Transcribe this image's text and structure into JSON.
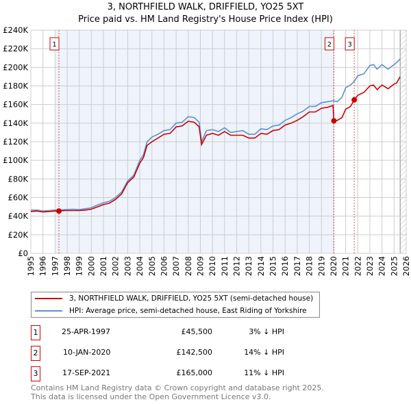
{
  "chart_data": {
    "type": "line",
    "title": "3, NORTHFIELD WALK, DRIFFIELD, YO25 5XT",
    "subtitle": "Price paid vs. HM Land Registry's House Price Index (HPI)",
    "xlim": [
      1995,
      2026
    ],
    "ylim": [
      0,
      240000
    ],
    "yticks": [
      {
        "v": 0,
        "l": "£0"
      },
      {
        "v": 20000,
        "l": "£20K"
      },
      {
        "v": 40000,
        "l": "£40K"
      },
      {
        "v": 60000,
        "l": "£60K"
      },
      {
        "v": 80000,
        "l": "£80K"
      },
      {
        "v": 100000,
        "l": "£100K"
      },
      {
        "v": 120000,
        "l": "£120K"
      },
      {
        "v": 140000,
        "l": "£140K"
      },
      {
        "v": 160000,
        "l": "£160K"
      },
      {
        "v": 180000,
        "l": "£180K"
      },
      {
        "v": 200000,
        "l": "£200K"
      },
      {
        "v": 220000,
        "l": "£220K"
      },
      {
        "v": 240000,
        "l": "£240K"
      }
    ],
    "xticks": [
      "1995",
      "1996",
      "1997",
      "1998",
      "1999",
      "2000",
      "2001",
      "2002",
      "2003",
      "2004",
      "2005",
      "2006",
      "2007",
      "2008",
      "2009",
      "2010",
      "2011",
      "2012",
      "2013",
      "2014",
      "2015",
      "2016",
      "2017",
      "2018",
      "2019",
      "2020",
      "2021",
      "2022",
      "2023",
      "2024",
      "2025",
      "2026"
    ],
    "grid": true,
    "shaded_range": [
      1997.0,
      2020.03
    ],
    "hatched_range": [
      2025.5,
      2026
    ],
    "series": [
      {
        "name": "3, NORTHFIELD WALK, DRIFFIELD, YO25 5XT (semi-detached house)",
        "color": "#cc0000",
        "x": [
          1995,
          1995.5,
          1996,
          1996.5,
          1997,
          1997.32,
          1997.8,
          1998.5,
          1999,
          1999.5,
          2000,
          2000.5,
          2001,
          2001.5,
          2002,
          2002.5,
          2003,
          2003.5,
          2004,
          2004.3,
          2004.6,
          2005,
          2005.5,
          2006,
          2006.5,
          2007,
          2007.5,
          2008,
          2008.5,
          2008.9,
          2009.1,
          2009.5,
          2010,
          2010.5,
          2011,
          2011.5,
          2012,
          2012.5,
          2013,
          2013.5,
          2014,
          2014.5,
          2015,
          2015.5,
          2016,
          2016.5,
          2017,
          2017.5,
          2018,
          2018.5,
          2019,
          2019.5,
          2019.95,
          2020.03,
          2020.3,
          2020.7,
          2021,
          2021.4,
          2021.71,
          2022,
          2022.5,
          2023,
          2023.3,
          2023.6,
          2024,
          2024.5,
          2025,
          2025.2,
          2025.5
        ],
        "y": [
          45000,
          45500,
          44500,
          45000,
          45500,
          45500,
          46000,
          46000,
          46000,
          46500,
          47500,
          50000,
          52500,
          54000,
          58000,
          64000,
          76000,
          82000,
          97000,
          103000,
          116000,
          120000,
          124000,
          128000,
          129000,
          136000,
          137000,
          142000,
          141000,
          136000,
          117000,
          127000,
          129000,
          127000,
          131000,
          127000,
          127000,
          127000,
          124000,
          124000,
          129000,
          128000,
          132000,
          133000,
          138000,
          140000,
          143000,
          147000,
          152000,
          152000,
          156000,
          157000,
          159000,
          142500,
          143000,
          146000,
          155000,
          158000,
          165000,
          170000,
          173000,
          180000,
          181000,
          176000,
          181000,
          177000,
          182000,
          183000,
          190000
        ]
      },
      {
        "name": "HPI: Average price, semi-detached house, East Riding of Yorkshire",
        "color": "#5b8fd4",
        "x": [
          1995,
          1995.5,
          1996,
          1996.5,
          1997,
          1997.32,
          1997.8,
          1998.5,
          1999,
          1999.5,
          2000,
          2000.5,
          2001,
          2001.5,
          2002,
          2002.5,
          2003,
          2003.5,
          2004,
          2004.3,
          2004.6,
          2005,
          2005.5,
          2006,
          2006.5,
          2007,
          2007.5,
          2008,
          2008.5,
          2008.9,
          2009.1,
          2009.5,
          2010,
          2010.5,
          2011,
          2011.5,
          2012,
          2012.5,
          2013,
          2013.5,
          2014,
          2014.5,
          2015,
          2015.5,
          2016,
          2016.5,
          2017,
          2017.5,
          2018,
          2018.5,
          2019,
          2019.5,
          2019.95,
          2020.03,
          2020.3,
          2020.7,
          2021,
          2021.4,
          2021.71,
          2022,
          2022.5,
          2023,
          2023.3,
          2023.6,
          2024,
          2024.5,
          2025,
          2025.2,
          2025.5
        ],
        "y": [
          46500,
          46500,
          45500,
          46000,
          46500,
          46500,
          47000,
          47500,
          47000,
          48000,
          49000,
          52000,
          54500,
          56000,
          60000,
          66000,
          78000,
          84000,
          100000,
          106000,
          120000,
          125000,
          128000,
          132000,
          133000,
          140000,
          141000,
          147000,
          146000,
          141000,
          120000,
          132000,
          133000,
          131000,
          135000,
          130000,
          131000,
          132000,
          128000,
          128000,
          134000,
          133000,
          137000,
          138000,
          143000,
          146000,
          150000,
          153000,
          158000,
          158000,
          162000,
          163000,
          164000,
          164000,
          163000,
          168000,
          178000,
          181000,
          185000,
          191000,
          193000,
          202000,
          203000,
          198000,
          203000,
          198000,
          203000,
          205000,
          209000
        ]
      }
    ],
    "markers": [
      {
        "label": "1",
        "x": 1997.32,
        "y": 45500
      },
      {
        "label": "2",
        "x": 2020.03,
        "y": 142500
      },
      {
        "label": "3",
        "x": 2021.71,
        "y": 165000
      }
    ]
  },
  "legend": {
    "property": "3, NORTHFIELD WALK, DRIFFIELD, YO25 5XT (semi-detached house)",
    "hpi": "HPI: Average price, semi-detached house, East Riding of Yorkshire"
  },
  "transactions": [
    {
      "num": "1",
      "date": "25-APR-1997",
      "price": "£45,500",
      "hpi": "3% ↓ HPI"
    },
    {
      "num": "2",
      "date": "10-JAN-2020",
      "price": "£142,500",
      "hpi": "14% ↓ HPI"
    },
    {
      "num": "3",
      "date": "17-SEP-2021",
      "price": "£165,000",
      "hpi": "11% ↓ HPI"
    }
  ],
  "footer": {
    "line1": "Contains HM Land Registry data © Crown copyright and database right 2025.",
    "line2": "This data is licensed under the Open Government Licence v3.0."
  }
}
